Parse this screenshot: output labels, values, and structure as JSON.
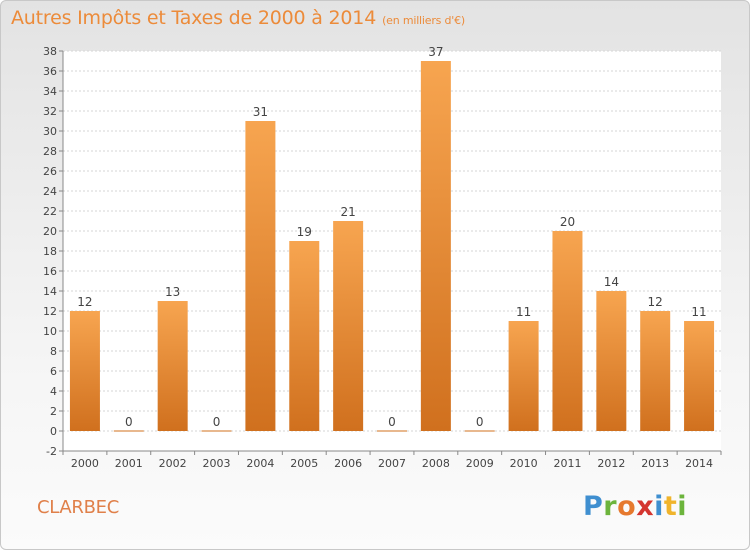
{
  "header": {
    "title": "Autres Impôts et Taxes de 2000 à 2014",
    "unit": "(en milliers d'€)"
  },
  "footer": {
    "place": "CLARBEC",
    "logo_text": "Proxiti"
  },
  "colors": {
    "bar_light": "#f7a550",
    "bar_dark": "#d0701e",
    "title": "#ec8b3a",
    "place": "#e0804a",
    "logo": [
      "#3f8fd0",
      "#6cb43c",
      "#e6792e",
      "#d4342f",
      "#3f8fd0",
      "#f0b42c",
      "#6cb43c"
    ]
  },
  "chart_data": {
    "type": "bar",
    "title": "Autres Impôts et Taxes de 2000 à 2014",
    "subtitle": "(en milliers d'€)",
    "xlabel": "",
    "ylabel": "",
    "categories": [
      "2000",
      "2001",
      "2002",
      "2003",
      "2004",
      "2005",
      "2006",
      "2007",
      "2008",
      "2009",
      "2010",
      "2011",
      "2012",
      "2013",
      "2014"
    ],
    "values": [
      12,
      0,
      13,
      0,
      31,
      19,
      21,
      0,
      37,
      0,
      11,
      20,
      14,
      12,
      11
    ],
    "ylim": [
      -2,
      38
    ],
    "yticks": [
      -2,
      0,
      2,
      4,
      6,
      8,
      10,
      12,
      14,
      16,
      18,
      20,
      22,
      24,
      26,
      28,
      30,
      32,
      34,
      36,
      38
    ],
    "grid": true,
    "legend": "none"
  }
}
